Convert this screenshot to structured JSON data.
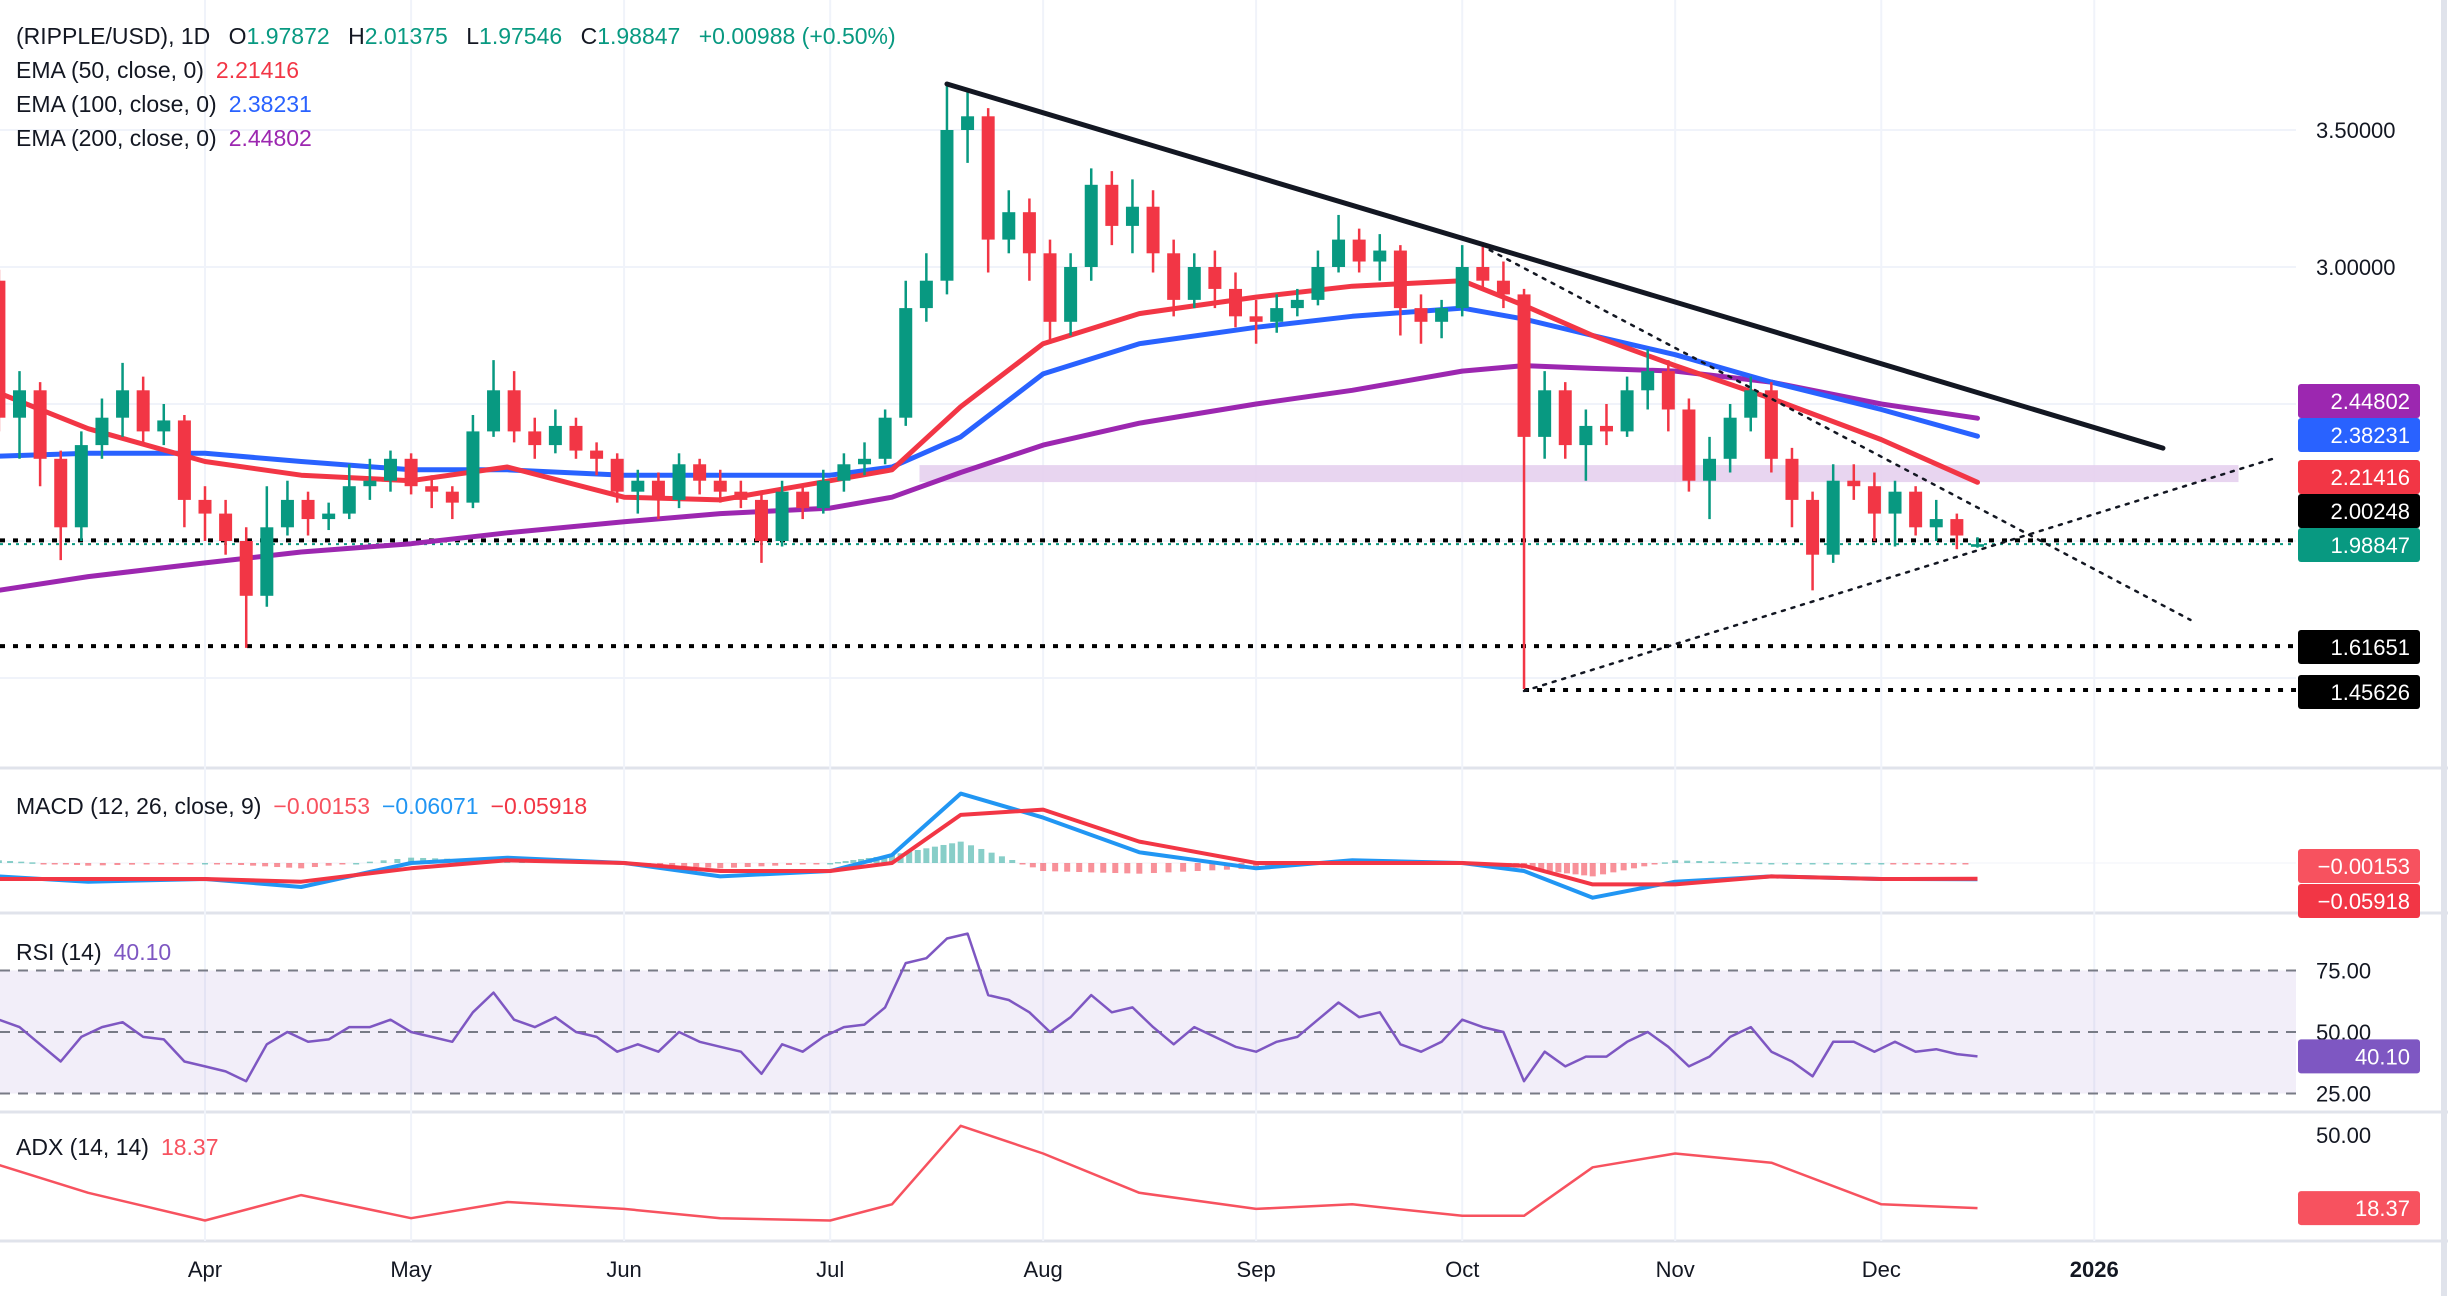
{
  "header": {
    "symbol": "(RIPPLE/USD), 1D",
    "o_label": "O",
    "o": "1.97872",
    "h_label": "H",
    "h": "2.01375",
    "l_label": "L",
    "l": "1.97546",
    "c_label": "C",
    "c": "1.98847",
    "change": "+0.00988 (+0.50%)"
  },
  "legend": {
    "ema50_label": "EMA (50, close, 0)",
    "ema50_value": "2.21416",
    "ema100_label": "EMA (100, close, 0)",
    "ema100_value": "2.38231",
    "ema200_label": "EMA (200, close, 0)",
    "ema200_value": "2.44802",
    "macd_label": "MACD (12, 26, close, 9)",
    "macd_hist": "−0.00153",
    "macd_line": "−0.06071",
    "macd_signal": "−0.05918",
    "rsi_label": "RSI (14)",
    "rsi_value": "40.10",
    "adx_label": "ADX (14, 14)",
    "adx_value": "18.37"
  },
  "colors": {
    "up": "#089981",
    "down": "#f23645",
    "ema50": "#f23645",
    "ema100": "#2962ff",
    "ema200": "#9c27b0",
    "macd": "#2196f3",
    "signal": "#f23645",
    "rsi": "#7e57c2",
    "adx": "#f7525f",
    "zone": "#e6d0ee"
  },
  "chart_data": {
    "type": "candlestick",
    "title": "(RIPPLE/USD), 1D",
    "price_ticks": [
      "3.50000",
      "3.00000"
    ],
    "time_labels": [
      {
        "date": "2025-04-01",
        "label": "Apr"
      },
      {
        "date": "2025-05-01",
        "label": "May"
      },
      {
        "date": "2025-06-01",
        "label": "Jun"
      },
      {
        "date": "2025-07-01",
        "label": "Jul"
      },
      {
        "date": "2025-08-01",
        "label": "Aug"
      },
      {
        "date": "2025-09-01",
        "label": "Sep"
      },
      {
        "date": "2025-10-01",
        "label": "Oct"
      },
      {
        "date": "2025-11-01",
        "label": "Nov"
      },
      {
        "date": "2025-12-01",
        "label": "Dec"
      },
      {
        "date": "2026-01-01",
        "label": "2026",
        "bold": true
      }
    ],
    "candles": [
      [
        "2025-03-02",
        2.95,
        2.99,
        2.4,
        2.45
      ],
      [
        "2025-03-05",
        2.45,
        2.62,
        2.3,
        2.55
      ],
      [
        "2025-03-08",
        2.55,
        2.58,
        2.2,
        2.3
      ],
      [
        "2025-03-11",
        2.3,
        2.33,
        1.93,
        2.05
      ],
      [
        "2025-03-14",
        2.05,
        2.4,
        2.0,
        2.35
      ],
      [
        "2025-03-17",
        2.35,
        2.52,
        2.3,
        2.45
      ],
      [
        "2025-03-20",
        2.45,
        2.65,
        2.38,
        2.55
      ],
      [
        "2025-03-23",
        2.55,
        2.6,
        2.35,
        2.4
      ],
      [
        "2025-03-26",
        2.4,
        2.5,
        2.35,
        2.44
      ],
      [
        "2025-03-29",
        2.44,
        2.46,
        2.05,
        2.15
      ],
      [
        "2025-04-01",
        2.15,
        2.2,
        2.0,
        2.1
      ],
      [
        "2025-04-04",
        2.1,
        2.15,
        1.95,
        2.0
      ],
      [
        "2025-04-07",
        2.0,
        2.05,
        1.61,
        1.8
      ],
      [
        "2025-04-10",
        1.8,
        2.2,
        1.76,
        2.05
      ],
      [
        "2025-04-13",
        2.05,
        2.22,
        2.02,
        2.15
      ],
      [
        "2025-04-16",
        2.15,
        2.18,
        2.02,
        2.08
      ],
      [
        "2025-04-19",
        2.08,
        2.14,
        2.04,
        2.1
      ],
      [
        "2025-04-22",
        2.1,
        2.28,
        2.08,
        2.2
      ],
      [
        "2025-04-25",
        2.2,
        2.3,
        2.15,
        2.22
      ],
      [
        "2025-04-28",
        2.22,
        2.33,
        2.18,
        2.3
      ],
      [
        "2025-05-01",
        2.3,
        2.32,
        2.17,
        2.2
      ],
      [
        "2025-05-04",
        2.2,
        2.24,
        2.12,
        2.18
      ],
      [
        "2025-05-07",
        2.18,
        2.2,
        2.08,
        2.14
      ],
      [
        "2025-05-10",
        2.14,
        2.46,
        2.12,
        2.4
      ],
      [
        "2025-05-13",
        2.4,
        2.66,
        2.38,
        2.55
      ],
      [
        "2025-05-16",
        2.55,
        2.62,
        2.36,
        2.4
      ],
      [
        "2025-05-19",
        2.4,
        2.45,
        2.3,
        2.35
      ],
      [
        "2025-05-22",
        2.35,
        2.48,
        2.32,
        2.42
      ],
      [
        "2025-05-25",
        2.42,
        2.45,
        2.3,
        2.33
      ],
      [
        "2025-05-28",
        2.33,
        2.36,
        2.24,
        2.3
      ],
      [
        "2025-05-31",
        2.3,
        2.32,
        2.14,
        2.18
      ],
      [
        "2025-06-03",
        2.18,
        2.26,
        2.1,
        2.22
      ],
      [
        "2025-06-06",
        2.22,
        2.25,
        2.08,
        2.15
      ],
      [
        "2025-06-09",
        2.15,
        2.32,
        2.12,
        2.28
      ],
      [
        "2025-06-12",
        2.28,
        2.3,
        2.17,
        2.22
      ],
      [
        "2025-06-15",
        2.22,
        2.26,
        2.14,
        2.18
      ],
      [
        "2025-06-18",
        2.18,
        2.22,
        2.12,
        2.15
      ],
      [
        "2025-06-21",
        2.15,
        2.18,
        1.92,
        2.0
      ],
      [
        "2025-06-24",
        2.0,
        2.22,
        1.98,
        2.18
      ],
      [
        "2025-06-27",
        2.18,
        2.2,
        2.08,
        2.12
      ],
      [
        "2025-06-30",
        2.12,
        2.26,
        2.1,
        2.22
      ],
      [
        "2025-07-03",
        2.22,
        2.32,
        2.18,
        2.28
      ],
      [
        "2025-07-06",
        2.28,
        2.36,
        2.24,
        2.3
      ],
      [
        "2025-07-09",
        2.3,
        2.48,
        2.28,
        2.45
      ],
      [
        "2025-07-12",
        2.45,
        2.95,
        2.42,
        2.85
      ],
      [
        "2025-07-15",
        2.85,
        3.05,
        2.8,
        2.95
      ],
      [
        "2025-07-18",
        2.95,
        3.66,
        2.9,
        3.5
      ],
      [
        "2025-07-21",
        3.5,
        3.65,
        3.38,
        3.55
      ],
      [
        "2025-07-24",
        3.55,
        3.58,
        2.98,
        3.1
      ],
      [
        "2025-07-27",
        3.1,
        3.28,
        3.05,
        3.2
      ],
      [
        "2025-07-30",
        3.2,
        3.25,
        2.95,
        3.05
      ],
      [
        "2025-08-02",
        3.05,
        3.1,
        2.72,
        2.8
      ],
      [
        "2025-08-05",
        2.8,
        3.05,
        2.75,
        3.0
      ],
      [
        "2025-08-08",
        3.0,
        3.36,
        2.95,
        3.3
      ],
      [
        "2025-08-11",
        3.3,
        3.35,
        3.08,
        3.15
      ],
      [
        "2025-08-14",
        3.15,
        3.32,
        3.05,
        3.22
      ],
      [
        "2025-08-17",
        3.22,
        3.28,
        2.98,
        3.05
      ],
      [
        "2025-08-20",
        3.05,
        3.1,
        2.82,
        2.88
      ],
      [
        "2025-08-23",
        2.88,
        3.05,
        2.85,
        3.0
      ],
      [
        "2025-08-26",
        3.0,
        3.06,
        2.85,
        2.92
      ],
      [
        "2025-08-29",
        2.92,
        2.98,
        2.78,
        2.82
      ],
      [
        "2025-09-01",
        2.82,
        2.88,
        2.72,
        2.8
      ],
      [
        "2025-09-04",
        2.8,
        2.9,
        2.76,
        2.85
      ],
      [
        "2025-09-07",
        2.85,
        2.92,
        2.82,
        2.88
      ],
      [
        "2025-09-10",
        2.88,
        3.06,
        2.86,
        3.0
      ],
      [
        "2025-09-13",
        3.0,
        3.19,
        2.98,
        3.1
      ],
      [
        "2025-09-16",
        3.1,
        3.14,
        2.98,
        3.02
      ],
      [
        "2025-09-19",
        3.02,
        3.12,
        2.95,
        3.06
      ],
      [
        "2025-09-22",
        3.06,
        3.08,
        2.75,
        2.85
      ],
      [
        "2025-09-25",
        2.85,
        2.9,
        2.72,
        2.8
      ],
      [
        "2025-09-28",
        2.8,
        2.88,
        2.74,
        2.85
      ],
      [
        "2025-10-01",
        2.85,
        3.08,
        2.82,
        3.0
      ],
      [
        "2025-10-04",
        3.0,
        3.09,
        2.92,
        2.95
      ],
      [
        "2025-10-07",
        2.95,
        3.02,
        2.85,
        2.9
      ],
      [
        "2025-10-10",
        2.9,
        2.92,
        1.46,
        2.38
      ],
      [
        "2025-10-13",
        2.38,
        2.62,
        2.3,
        2.55
      ],
      [
        "2025-10-16",
        2.55,
        2.58,
        2.3,
        2.35
      ],
      [
        "2025-10-19",
        2.35,
        2.48,
        2.22,
        2.42
      ],
      [
        "2025-10-22",
        2.42,
        2.5,
        2.35,
        2.4
      ],
      [
        "2025-10-25",
        2.4,
        2.6,
        2.38,
        2.55
      ],
      [
        "2025-10-28",
        2.55,
        2.7,
        2.48,
        2.62
      ],
      [
        "2025-10-31",
        2.62,
        2.66,
        2.4,
        2.48
      ],
      [
        "2025-11-03",
        2.48,
        2.52,
        2.18,
        2.22
      ],
      [
        "2025-11-06",
        2.22,
        2.38,
        2.08,
        2.3
      ],
      [
        "2025-11-09",
        2.3,
        2.5,
        2.25,
        2.45
      ],
      [
        "2025-11-12",
        2.45,
        2.6,
        2.4,
        2.55
      ],
      [
        "2025-11-15",
        2.55,
        2.58,
        2.25,
        2.3
      ],
      [
        "2025-11-18",
        2.3,
        2.34,
        2.05,
        2.15
      ],
      [
        "2025-11-21",
        2.15,
        2.18,
        1.82,
        1.95
      ],
      [
        "2025-11-24",
        1.95,
        2.28,
        1.92,
        2.22
      ],
      [
        "2025-11-27",
        2.22,
        2.28,
        2.15,
        2.2
      ],
      [
        "2025-11-30",
        2.2,
        2.25,
        2.0,
        2.1
      ],
      [
        "2025-12-03",
        2.1,
        2.22,
        1.98,
        2.18
      ],
      [
        "2025-12-06",
        2.18,
        2.2,
        2.02,
        2.05
      ],
      [
        "2025-12-09",
        2.05,
        2.15,
        2.0,
        2.08
      ],
      [
        "2025-12-12",
        2.08,
        2.1,
        1.97,
        2.02
      ],
      [
        "2025-12-15",
        1.97872,
        2.01375,
        1.97546,
        1.98847
      ]
    ],
    "indicator_dates": [
      "2025-03-02",
      "2025-03-15",
      "2025-04-01",
      "2025-04-15",
      "2025-05-01",
      "2025-05-15",
      "2025-06-01",
      "2025-06-15",
      "2025-07-01",
      "2025-07-10",
      "2025-07-20",
      "2025-08-01",
      "2025-08-15",
      "2025-09-01",
      "2025-09-15",
      "2025-10-01",
      "2025-10-10",
      "2025-10-20",
      "2025-11-01",
      "2025-11-15",
      "2025-12-01",
      "2025-12-15"
    ],
    "ema50": [
      2.54,
      2.41,
      2.29,
      2.24,
      2.22,
      2.27,
      2.16,
      2.15,
      2.22,
      2.26,
      2.49,
      2.72,
      2.83,
      2.89,
      2.93,
      2.95,
      2.86,
      2.75,
      2.64,
      2.52,
      2.37,
      2.21416
    ],
    "ema100": [
      2.31,
      2.32,
      2.32,
      2.29,
      2.26,
      2.26,
      2.24,
      2.24,
      2.24,
      2.27,
      2.38,
      2.61,
      2.72,
      2.78,
      2.82,
      2.85,
      2.81,
      2.75,
      2.68,
      2.58,
      2.48,
      2.38231
    ],
    "ema200": [
      1.82,
      1.87,
      1.92,
      1.96,
      1.99,
      2.03,
      2.07,
      2.1,
      2.12,
      2.16,
      2.25,
      2.35,
      2.43,
      2.5,
      2.55,
      2.62,
      2.64,
      2.63,
      2.62,
      2.58,
      2.5,
      2.44802
    ],
    "macd": [
      -0.05,
      -0.07,
      -0.06,
      -0.09,
      0.0,
      0.02,
      0.0,
      -0.05,
      -0.03,
      0.03,
      0.26,
      0.17,
      0.04,
      -0.02,
      0.01,
      0.0,
      -0.03,
      -0.13,
      -0.07,
      -0.05,
      -0.06,
      -0.06071
    ],
    "signal": [
      -0.06,
      -0.06,
      -0.06,
      -0.07,
      -0.02,
      0.01,
      0.0,
      -0.03,
      -0.03,
      0.0,
      0.18,
      0.2,
      0.08,
      0.0,
      0.0,
      0.0,
      -0.01,
      -0.08,
      -0.08,
      -0.05,
      -0.06,
      -0.05918
    ],
    "adx": [
      37,
      25,
      13,
      24,
      14,
      21,
      18,
      14,
      13,
      20,
      54,
      42,
      25,
      18,
      20,
      15,
      15,
      36,
      42,
      38,
      20,
      18.37
    ],
    "rsi": [
      55,
      52,
      45,
      38,
      48,
      52,
      54,
      48,
      47,
      38,
      36,
      34,
      30,
      45,
      50,
      46,
      47,
      52,
      52,
      55,
      50,
      48,
      46,
      58,
      66,
      55,
      52,
      56,
      50,
      48,
      42,
      45,
      42,
      50,
      46,
      44,
      42,
      33,
      45,
      42,
      48,
      52,
      53,
      60,
      78,
      80,
      88,
      90,
      65,
      63,
      58,
      50,
      56,
      65,
      58,
      60,
      52,
      45,
      52,
      48,
      44,
      42,
      46,
      48,
      55,
      62,
      56,
      58,
      45,
      42,
      46,
      55,
      52,
      50,
      30,
      42,
      36,
      40,
      40,
      46,
      50,
      44,
      36,
      40,
      48,
      52,
      42,
      38,
      32,
      46,
      46,
      42,
      46,
      42,
      43,
      41,
      40.1
    ],
    "rsi_levels": [
      75,
      50,
      25
    ],
    "rsi_ticks": [
      "75.00",
      "50.00",
      "25.00"
    ],
    "adx_ticks": [
      "50.00"
    ],
    "trendlines": [
      {
        "name": "descending-resistance",
        "from": [
          "2025-07-18",
          3.668
        ],
        "to": [
          "2026-01-11",
          2.339
        ],
        "style": "solid"
      },
      {
        "name": "descending-channel",
        "from": [
          "2025-10-05",
          3.062
        ],
        "to": [
          "2026-01-15",
          1.712
        ],
        "style": "dotted"
      },
      {
        "name": "ascending-support",
        "from": [
          "2025-10-10",
          1.4526
        ],
        "to": [
          "2026-01-27",
          2.3
        ],
        "style": "dotted"
      }
    ],
    "zone": {
      "from": "2025-07-14",
      "to": "2026-01-22",
      "high": 2.277,
      "low": 2.215
    },
    "levels": [
      {
        "price": 2.00248,
        "label": "2.00248",
        "from": "2025-03-01",
        "color": "#000000"
      },
      {
        "price": 1.98847,
        "label": "1.98847",
        "from": "2025-03-01",
        "color": "#089981"
      },
      {
        "price": 1.61651,
        "label": "1.61651",
        "from": "2025-03-01",
        "color": "#000000"
      },
      {
        "price": 1.45626,
        "label": "1.45626",
        "from": "2025-10-10",
        "color": "#000000"
      }
    ],
    "price_tags": [
      {
        "label": "2.44802",
        "color": "#9c27b0"
      },
      {
        "label": "2.38231",
        "color": "#2962ff"
      },
      {
        "label": "2.21416",
        "color": "#f23645"
      },
      {
        "label": "2.00248",
        "color": "#000000"
      },
      {
        "label": "1.98847",
        "color": "#089981"
      },
      {
        "label": "1.61651",
        "color": "#000000"
      },
      {
        "label": "1.45626",
        "color": "#000000"
      }
    ],
    "macd_tags": [
      {
        "label": "−0.00153",
        "color": "#f7525f"
      },
      {
        "label": "−0.05918",
        "color": "#f23645"
      }
    ],
    "rsi_tag": {
      "label": "40.10",
      "color": "#7e57c2"
    },
    "adx_tag": {
      "label": "18.37",
      "color": "#f7525f"
    }
  }
}
